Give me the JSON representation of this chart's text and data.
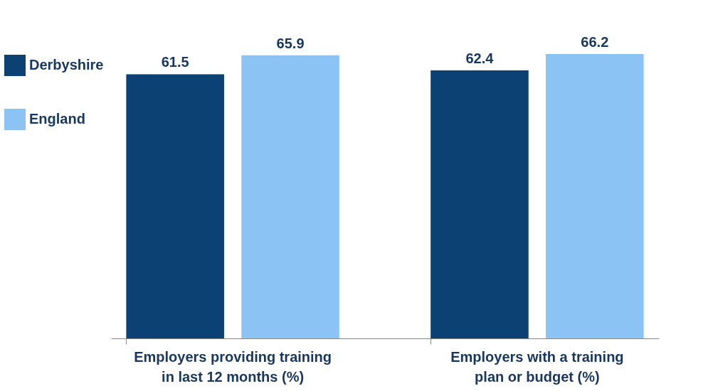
{
  "chart_data": {
    "type": "bar",
    "categories": [
      "Employers providing training in last 12 months  (%)",
      "Employers with a training plan or budget (%)"
    ],
    "series": [
      {
        "name": "Derbyshire",
        "color": "#0b4173",
        "values": [
          61.5,
          62.4
        ]
      },
      {
        "name": "England",
        "color": "#8cc3f5",
        "values": [
          65.9,
          66.2
        ]
      }
    ],
    "data_labels": true,
    "legend": "left",
    "grid": false
  }
}
